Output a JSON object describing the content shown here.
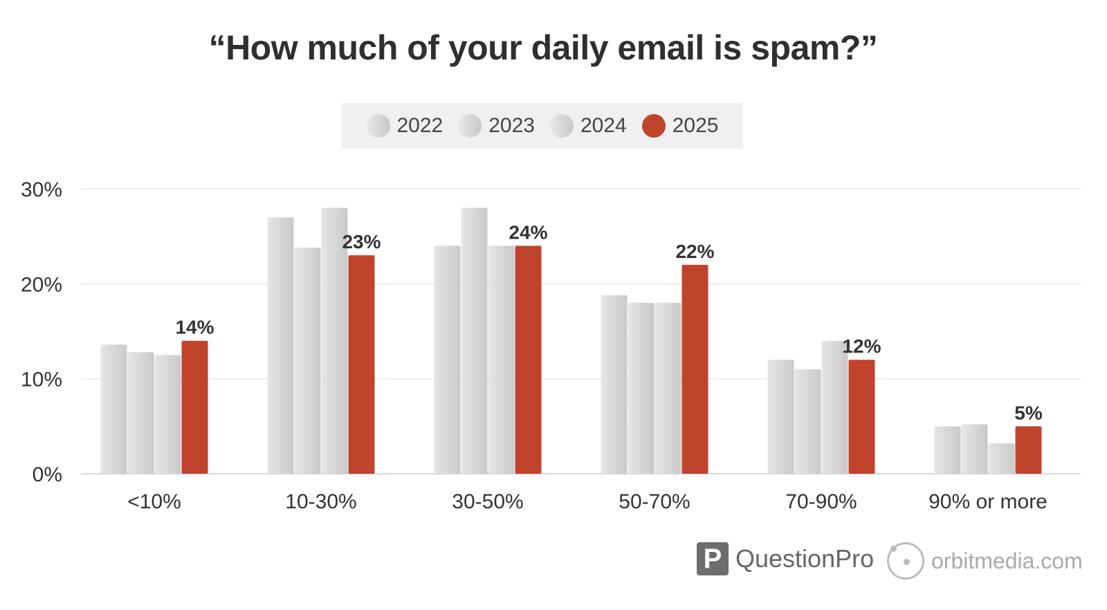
{
  "chart_data": {
    "type": "bar",
    "title": "“How much of your daily email is spam?”",
    "categories": [
      "<10%",
      "10-30%",
      "30-50%",
      "50-70%",
      "70-90%",
      "90% or more"
    ],
    "series": [
      {
        "name": "2022",
        "values": [
          13.6,
          27,
          24,
          18.8,
          12,
          5
        ],
        "color": "#d6d6d6"
      },
      {
        "name": "2023",
        "values": [
          12.8,
          23.8,
          28,
          18,
          11,
          5.2
        ],
        "color": "#d6d6d6"
      },
      {
        "name": "2024",
        "values": [
          12.5,
          28,
          24,
          18,
          14,
          3.2
        ],
        "color": "#d6d6d6"
      },
      {
        "name": "2025",
        "values": [
          14,
          23,
          24,
          22,
          12,
          5
        ],
        "color": "#c0432c",
        "labels": [
          "14%",
          "23%",
          "24%",
          "22%",
          "12%",
          "5%"
        ]
      }
    ],
    "ylim": [
      0,
      30
    ],
    "yticks": [
      0,
      10,
      20,
      30
    ],
    "ytick_labels": [
      "0%",
      "10%",
      "20%",
      "30%"
    ],
    "grid": true,
    "legend_position": "top-center"
  },
  "branding": {
    "questionpro": "QuestionPro",
    "orbitmedia": "orbitmedia.com"
  }
}
